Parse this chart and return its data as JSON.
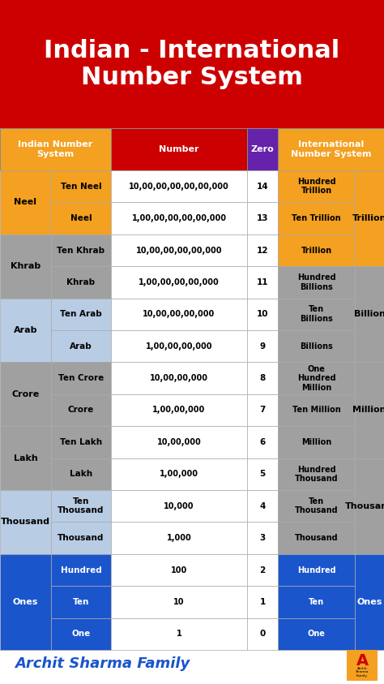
{
  "title": "Indian - International\nNumber System",
  "title_bg": "#CC0000",
  "title_color": "#FFFFFF",
  "header_labels": [
    "Indian Number\nSystem",
    "Number",
    "Zero",
    "International\nNumber System"
  ],
  "header_bgs": [
    "#F4A020",
    "#CC0000",
    "#6622AA",
    "#F4A020"
  ],
  "rows": [
    {
      "indian_name": "Ten Neel",
      "number": "10,00,00,00,00,00,000",
      "zero": "14",
      "international": "Hundred\nTrillion"
    },
    {
      "indian_name": "Neel",
      "number": "1,00,00,00,00,00,000",
      "zero": "13",
      "international": "Ten Trillion"
    },
    {
      "indian_name": "Ten Khrab",
      "number": "10,00,00,00,00,000",
      "zero": "12",
      "international": "Trillion"
    },
    {
      "indian_name": "Khrab",
      "number": "1,00,00,00,00,000",
      "zero": "11",
      "international": "Hundred\nBillions"
    },
    {
      "indian_name": "Ten Arab",
      "number": "10,00,00,00,000",
      "zero": "10",
      "international": "Ten\nBillions"
    },
    {
      "indian_name": "Arab",
      "number": "1,00,00,00,000",
      "zero": "9",
      "international": "Billions"
    },
    {
      "indian_name": "Ten Crore",
      "number": "10,00,00,000",
      "zero": "8",
      "international": "One\nHundred\nMillion"
    },
    {
      "indian_name": "Crore",
      "number": "1,00,00,000",
      "zero": "7",
      "international": "Ten Million"
    },
    {
      "indian_name": "Ten Lakh",
      "number": "10,00,000",
      "zero": "6",
      "international": "Million"
    },
    {
      "indian_name": "Lakh",
      "number": "1,00,000",
      "zero": "5",
      "international": "Hundred\nThousand"
    },
    {
      "indian_name": "Ten\nThousand",
      "number": "10,000",
      "zero": "4",
      "international": "Ten\nThousand"
    },
    {
      "indian_name": "Thousand",
      "number": "1,000",
      "zero": "3",
      "international": "Thousand"
    },
    {
      "indian_name": "Hundred",
      "number": "100",
      "zero": "2",
      "international": "Hundred"
    },
    {
      "indian_name": "Ten",
      "number": "10",
      "zero": "1",
      "international": "Ten"
    },
    {
      "indian_name": "One",
      "number": "1",
      "zero": "0",
      "international": "One"
    }
  ],
  "indian_groups": [
    {
      "name": "Neel",
      "rows": [
        0,
        1
      ],
      "bg": "#F4A020",
      "text": "#000000"
    },
    {
      "name": "Khrab",
      "rows": [
        2,
        3
      ],
      "bg": "#A0A0A0",
      "text": "#000000"
    },
    {
      "name": "Arab",
      "rows": [
        4,
        5
      ],
      "bg": "#B8CCE4",
      "text": "#000000"
    },
    {
      "name": "Crore",
      "rows": [
        6,
        7
      ],
      "bg": "#A0A0A0",
      "text": "#000000"
    },
    {
      "name": "Lakh",
      "rows": [
        8,
        9
      ],
      "bg": "#A0A0A0",
      "text": "#000000"
    },
    {
      "name": "Thousand",
      "rows": [
        10,
        11
      ],
      "bg": "#B8CCE4",
      "text": "#000000"
    },
    {
      "name": "Ones",
      "rows": [
        12,
        13,
        14
      ],
      "bg": "#1A55CC",
      "text": "#FFFFFF"
    }
  ],
  "intl_groups": [
    {
      "name": "Trillion",
      "rows": [
        0,
        1,
        2
      ],
      "bg": "#F4A020",
      "text": "#000000"
    },
    {
      "name": "Billion",
      "rows": [
        3,
        4,
        5
      ],
      "bg": "#A0A0A0",
      "text": "#000000"
    },
    {
      "name": "Million",
      "rows": [
        6,
        7,
        8
      ],
      "bg": "#A0A0A0",
      "text": "#000000"
    },
    {
      "name": "Thousand",
      "rows": [
        9,
        10,
        11
      ],
      "bg": "#A0A0A0",
      "text": "#000000"
    },
    {
      "name": "Ones",
      "rows": [
        12,
        13,
        14
      ],
      "bg": "#1A55CC",
      "text": "#FFFFFF"
    }
  ],
  "indian_name_col_bgs": [
    "#F4A020",
    "#F4A020",
    "#A0A0A0",
    "#A0A0A0",
    "#B8CCE4",
    "#B8CCE4",
    "#A0A0A0",
    "#A0A0A0",
    "#A0A0A0",
    "#A0A0A0",
    "#B8CCE4",
    "#B8CCE4",
    "#1A55CC",
    "#1A55CC",
    "#1A55CC"
  ],
  "intl_name_col_bgs": [
    "#F4A020",
    "#F4A020",
    "#F4A020",
    "#A0A0A0",
    "#A0A0A0",
    "#A0A0A0",
    "#A0A0A0",
    "#A0A0A0",
    "#A0A0A0",
    "#A0A0A0",
    "#A0A0A0",
    "#A0A0A0",
    "#1A55CC",
    "#1A55CC",
    "#1A55CC"
  ],
  "footer_text": "Archit Sharma Family",
  "footer_color": "#1A55CC"
}
